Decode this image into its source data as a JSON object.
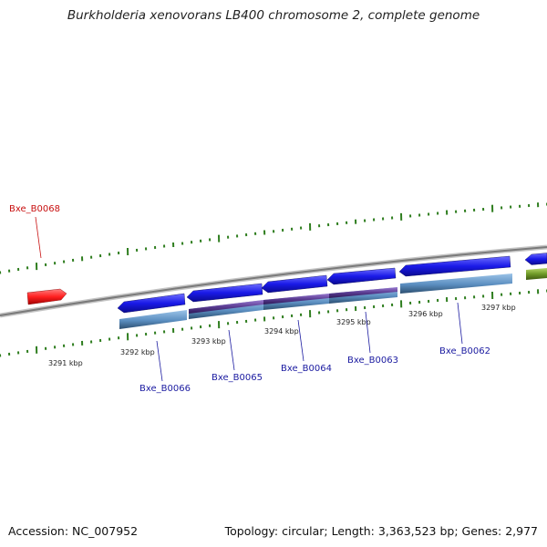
{
  "title": "Burkholderia xenovorans LB400 chromosome 2, complete genome",
  "footer": {
    "accession": "Accession: NC_007952",
    "summary": "Topology: circular; Length: 3,363,523 bp; Genes: 2,977"
  },
  "colors": {
    "backbone": "#8a8a8a",
    "tick": "#2e7d1e",
    "gene_forward": "#e8101a",
    "gene_reverse": "#1a1ae0",
    "cds_feature": "#5b8ec0",
    "domain_feature": "#5a3c92",
    "green_feature": "#6f9a28",
    "label_blue": "#1a1aa0",
    "label_red": "#c81010"
  },
  "scale": {
    "kbp_labels": [
      "3291 kbp",
      "3292 kbp",
      "3293 kbp",
      "3294 kbp",
      "3295 kbp",
      "3296 kbp",
      "3297 kbp"
    ]
  },
  "genes": [
    {
      "label": "Bxe_B0068",
      "strand": "+"
    },
    {
      "label": "Bxe_B0066",
      "strand": "-"
    },
    {
      "label": "Bxe_B0065",
      "strand": "-"
    },
    {
      "label": "Bxe_B0064",
      "strand": "-"
    },
    {
      "label": "Bxe_B0063",
      "strand": "-"
    },
    {
      "label": "Bxe_B0062",
      "strand": "-"
    }
  ]
}
